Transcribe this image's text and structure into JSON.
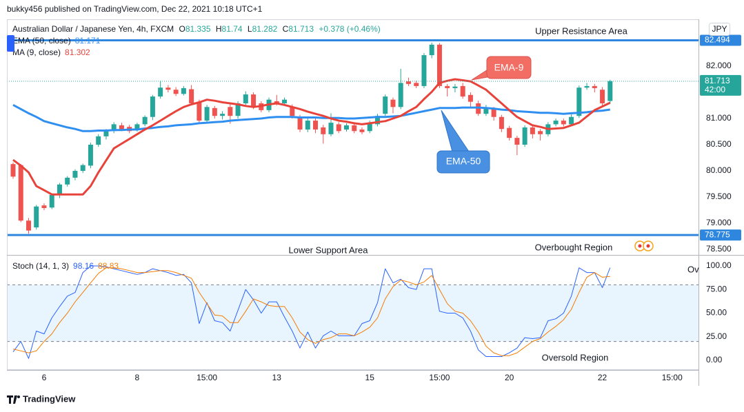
{
  "header": "bukky456 published on TradingView.com, Dec 22, 2021 10:18 UTC+1",
  "footer": "TradingView",
  "chart_data": [
    {
      "type": "candlestick",
      "title": "Australian Dollar / Japanese Yen, 4h, FXCM",
      "ohlc_labels": [
        "O",
        "H",
        "L",
        "C"
      ],
      "change": "+0.378 (+0.46%)",
      "currency": "JPY",
      "countdown": "42:00",
      "up_color": "#26a69a",
      "down_color": "#ef5350",
      "open": [
        80.13,
        80.11,
        79.05,
        78.92,
        79.34,
        79.3,
        79.54,
        79.74,
        79.87,
        80.0,
        80.1,
        80.5,
        80.66,
        80.76,
        80.87,
        80.84,
        80.79,
        80.89,
        81.03,
        81.42,
        81.59,
        81.55,
        81.47,
        81.56,
        81.32,
        80.96,
        81.2,
        81.05,
        81.22,
        81.05,
        81.29,
        81.46,
        81.29,
        81.16,
        81.33,
        81.29,
        81.22,
        81.03,
        80.79,
        80.96,
        80.83,
        80.7,
        80.89,
        80.79,
        80.87,
        80.79,
        80.76,
        80.89,
        81.09,
        81.36,
        81.22,
        81.71,
        81.68,
        81.62,
        82.21,
        82.41,
        81.62,
        81.58,
        81.62,
        81.45,
        81.29,
        81.09,
        81.18,
        81.03,
        80.82,
        80.63,
        80.5,
        80.83,
        80.76,
        80.7,
        80.89,
        80.96,
        80.89,
        81.05,
        81.59,
        81.62,
        81.55,
        81.335
      ],
      "high": [
        80.16,
        80.13,
        79.1,
        79.35,
        79.38,
        79.56,
        79.77,
        79.9,
        80.03,
        80.14,
        80.54,
        80.7,
        80.8,
        80.93,
        80.92,
        80.88,
        80.92,
        81.06,
        81.45,
        81.72,
        81.64,
        81.6,
        81.62,
        81.64,
        81.36,
        81.26,
        81.24,
        81.14,
        81.27,
        81.33,
        81.52,
        81.5,
        81.33,
        81.4,
        81.45,
        81.4,
        81.27,
        81.07,
        81.0,
        81.0,
        80.88,
        81.1,
        80.93,
        80.91,
        80.91,
        80.83,
        80.96,
        81.09,
        81.46,
        81.4,
        81.95,
        81.78,
        81.72,
        82.25,
        82.45,
        82.44,
        81.66,
        81.66,
        81.68,
        81.5,
        81.34,
        81.26,
        81.22,
        81.07,
        80.86,
        80.67,
        80.87,
        80.87,
        80.8,
        80.93,
        81.0,
        81.0,
        81.1,
        81.63,
        81.68,
        81.66,
        81.6,
        81.74
      ],
      "low": [
        79.85,
        79.02,
        78.8,
        78.88,
        79.25,
        79.27,
        79.48,
        79.7,
        79.82,
        79.96,
        80.05,
        80.46,
        80.6,
        80.72,
        80.76,
        80.72,
        80.75,
        80.85,
        80.97,
        81.38,
        81.5,
        81.43,
        81.44,
        81.25,
        80.92,
        80.92,
        81.0,
        80.98,
        80.9,
        81.0,
        81.24,
        81.18,
        81.12,
        81.12,
        81.25,
        81.25,
        81.0,
        80.74,
        80.74,
        80.72,
        80.52,
        80.66,
        80.72,
        80.75,
        80.72,
        80.7,
        80.72,
        80.85,
        81.05,
        81.1,
        81.18,
        81.62,
        81.58,
        81.58,
        82.15,
        81.58,
        81.42,
        81.5,
        81.38,
        81.22,
        81.05,
        81.05,
        80.96,
        80.74,
        80.58,
        80.3,
        80.46,
        80.62,
        80.58,
        80.66,
        80.85,
        80.85,
        80.85,
        81.01,
        81.55,
        81.5,
        81.25,
        81.282
      ],
      "close": [
        79.89,
        79.05,
        78.86,
        79.32,
        79.29,
        79.54,
        79.74,
        79.87,
        80.0,
        80.11,
        80.5,
        80.66,
        80.76,
        80.89,
        80.79,
        80.76,
        80.89,
        81.03,
        81.42,
        81.59,
        81.55,
        81.47,
        81.58,
        81.29,
        80.96,
        81.22,
        81.05,
        81.09,
        81.05,
        81.29,
        81.46,
        81.22,
        81.16,
        81.36,
        81.29,
        81.36,
        81.05,
        80.79,
        80.96,
        80.79,
        80.7,
        80.92,
        80.76,
        80.87,
        80.76,
        80.74,
        80.92,
        81.05,
        81.42,
        81.22,
        81.68,
        81.66,
        81.62,
        82.21,
        82.41,
        81.62,
        81.58,
        81.61,
        81.42,
        81.32,
        81.09,
        81.2,
        81.03,
        80.8,
        80.63,
        80.5,
        80.83,
        80.7,
        80.7,
        80.89,
        80.96,
        80.89,
        81.03,
        81.59,
        81.62,
        81.58,
        81.29,
        81.713
      ],
      "series": [
        {
          "name": "EMA (50, close)",
          "color": "#2f8ff0",
          "values": [
            81.26,
            81.18,
            81.1,
            81.03,
            80.95,
            80.91,
            80.87,
            80.83,
            80.8,
            80.76,
            80.76,
            80.77,
            80.77,
            80.78,
            80.78,
            80.79,
            80.79,
            80.81,
            80.82,
            80.84,
            80.85,
            80.87,
            80.88,
            80.89,
            80.91,
            80.92,
            80.93,
            80.94,
            80.96,
            80.97,
            80.98,
            80.99,
            81.0,
            81.02,
            81.03,
            81.03,
            81.03,
            81.02,
            81.02,
            81.02,
            81.01,
            81.01,
            81.01,
            81.0,
            81.0,
            81.01,
            81.02,
            81.03,
            81.03,
            81.04,
            81.05,
            81.08,
            81.11,
            81.14,
            81.17,
            81.2,
            81.2,
            81.2,
            81.21,
            81.21,
            81.21,
            81.2,
            81.19,
            81.17,
            81.16,
            81.14,
            81.13,
            81.12,
            81.11,
            81.11,
            81.1,
            81.09,
            81.1,
            81.11,
            81.12,
            81.14,
            81.15,
            81.171
          ]
        },
        {
          "name": "MA (9, close)",
          "color": "#e8433b",
          "values": [
            80.21,
            80.1,
            79.97,
            79.71,
            79.63,
            79.55,
            79.55,
            79.55,
            79.55,
            79.55,
            79.71,
            79.97,
            80.2,
            80.43,
            80.52,
            80.61,
            80.7,
            80.79,
            80.87,
            80.96,
            81.05,
            81.14,
            81.22,
            81.27,
            81.31,
            81.36,
            81.34,
            81.31,
            81.29,
            81.27,
            81.24,
            81.22,
            81.24,
            81.27,
            81.29,
            81.26,
            81.22,
            81.18,
            81.13,
            81.09,
            81.05,
            81.0,
            80.96,
            80.94,
            80.91,
            80.89,
            80.91,
            80.93,
            80.95,
            81.0,
            81.05,
            81.14,
            81.22,
            81.37,
            81.51,
            81.68,
            81.72,
            81.75,
            81.73,
            81.71,
            81.63,
            81.55,
            81.42,
            81.29,
            81.16,
            81.03,
            80.95,
            80.87,
            80.84,
            80.8,
            80.81,
            80.82,
            80.87,
            80.92,
            81.04,
            81.16,
            81.23,
            81.302
          ]
        }
      ],
      "levels": [
        {
          "value": 82.494,
          "label": "Upper Resistance Area",
          "color": "#2e86de"
        },
        {
          "value": 78.775,
          "label": "Lower Support Area",
          "color": "#2e86de"
        }
      ],
      "annotations": [
        "EMA-9",
        "EMA-50",
        "Overbought Region"
      ],
      "ylim": [
        78.395,
        82.895
      ],
      "yticks": [
        {
          "value": 78.5,
          "label": "78.500"
        },
        {
          "value": 79,
          "label": "79.000"
        },
        {
          "value": 79.5,
          "label": "79.500"
        },
        {
          "value": 80,
          "label": "80.000"
        },
        {
          "value": 80.5,
          "label": "80.500"
        },
        {
          "value": 81,
          "label": "81.000"
        },
        {
          "value": 82,
          "label": "82.000"
        }
      ],
      "grid": true
    },
    {
      "type": "line",
      "title": "Stoch (14, 1, 3)",
      "series": [
        {
          "color": "#2962ff",
          "values": [
            9,
            20,
            2,
            31,
            28,
            45,
            57,
            68,
            72,
            93,
            100,
            100,
            99,
            97,
            95,
            93,
            91,
            93,
            97,
            95,
            93,
            90,
            91,
            82,
            39,
            61,
            42,
            40,
            31,
            53,
            75,
            64,
            50,
            62,
            62,
            46,
            31,
            13,
            30,
            13,
            26,
            31,
            26,
            26,
            26,
            39,
            42,
            61,
            97,
            82,
            86,
            77,
            75,
            97,
            97,
            52,
            50,
            50,
            45,
            31,
            11,
            4,
            4,
            4,
            8,
            13,
            24,
            23,
            24,
            42,
            44,
            50,
            68,
            98,
            93,
            93,
            77,
            98.16
          ]
        },
        {
          "color": "#f57c00",
          "values": [
            12,
            10,
            8,
            10,
            20,
            28,
            40,
            50,
            62,
            72,
            82,
            92,
            98,
            98,
            97,
            95,
            93,
            93,
            94,
            95,
            95,
            93,
            90,
            87,
            72,
            60,
            48,
            47,
            40,
            40,
            52,
            65,
            62,
            58,
            57,
            57,
            45,
            30,
            22,
            18,
            22,
            24,
            28,
            28,
            26,
            30,
            35,
            45,
            65,
            78,
            85,
            83,
            80,
            83,
            90,
            75,
            60,
            52,
            50,
            42,
            30,
            15,
            8,
            5,
            5,
            8,
            14,
            20,
            23,
            30,
            36,
            43,
            54,
            72,
            88,
            93,
            88,
            88.83
          ]
        }
      ],
      "levels": [
        80,
        20
      ],
      "band_color": "#2196f3",
      "annotations": [
        "Oversold Region",
        "Ov"
      ],
      "ylim": [
        -10.2,
        110.2
      ],
      "yticks": [
        {
          "value": 0,
          "label": "0.00"
        },
        {
          "value": 25,
          "label": "25.00"
        },
        {
          "value": 50,
          "label": "50.00"
        },
        {
          "value": 75,
          "label": "75.00"
        },
        {
          "value": 100,
          "label": "100.00"
        }
      ],
      "xlim": [
        -0.8,
        88.4
      ],
      "xticks": [
        {
          "value": 4,
          "label": "6"
        },
        {
          "value": 16,
          "label": "8"
        },
        {
          "value": 25,
          "label": "15:00"
        },
        {
          "value": 34,
          "label": "13"
        },
        {
          "value": 46,
          "label": "15"
        },
        {
          "value": 55,
          "label": "15:00"
        },
        {
          "value": 64,
          "label": "20"
        },
        {
          "value": 76,
          "label": "22"
        },
        {
          "value": 85,
          "label": "15:00"
        }
      ],
      "grid": true
    }
  ]
}
